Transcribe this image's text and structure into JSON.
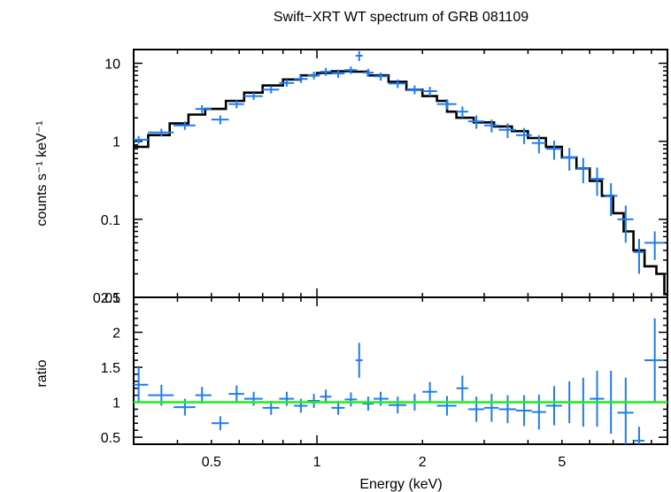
{
  "chart_data": [
    {
      "type": "scatter",
      "title": "Swift−XRT WT spectrum of GRB 081109",
      "ylabel": "counts s⁻¹ keV⁻¹",
      "xlabel": "",
      "x_scale": "log",
      "y_scale": "log",
      "xlim": [
        0.3,
        10
      ],
      "ylim": [
        0.01,
        15
      ],
      "x_ticks": [],
      "y_ticks": [
        {
          "value": 0.01,
          "label": "0.01"
        },
        {
          "value": 0.1,
          "label": "0.1"
        },
        {
          "value": 1,
          "label": "1"
        },
        {
          "value": 10,
          "label": "10"
        }
      ],
      "series": [
        {
          "kind": "data",
          "color": "#1e7cf0",
          "points": [
            {
              "x": 0.31,
              "xlo": 0.3,
              "xhi": 0.33,
              "y": 1.05,
              "yerr": 0.12
            },
            {
              "x": 0.36,
              "xlo": 0.33,
              "xhi": 0.39,
              "y": 1.3,
              "yerr": 0.15
            },
            {
              "x": 0.42,
              "xlo": 0.39,
              "xhi": 0.45,
              "y": 1.6,
              "yerr": 0.2
            },
            {
              "x": 0.47,
              "xlo": 0.45,
              "xhi": 0.5,
              "y": 2.6,
              "yerr": 0.3
            },
            {
              "x": 0.53,
              "xlo": 0.5,
              "xhi": 0.56,
              "y": 1.9,
              "yerr": 0.25
            },
            {
              "x": 0.59,
              "xlo": 0.56,
              "xhi": 0.62,
              "y": 3.0,
              "yerr": 0.35
            },
            {
              "x": 0.66,
              "xlo": 0.62,
              "xhi": 0.7,
              "y": 3.8,
              "yerr": 0.4
            },
            {
              "x": 0.74,
              "xlo": 0.7,
              "xhi": 0.78,
              "y": 4.6,
              "yerr": 0.5
            },
            {
              "x": 0.82,
              "xlo": 0.78,
              "xhi": 0.86,
              "y": 5.6,
              "yerr": 0.6
            },
            {
              "x": 0.9,
              "xlo": 0.86,
              "xhi": 0.94,
              "y": 6.3,
              "yerr": 0.7
            },
            {
              "x": 0.98,
              "xlo": 0.94,
              "xhi": 1.02,
              "y": 7.0,
              "yerr": 0.8
            },
            {
              "x": 1.06,
              "xlo": 1.02,
              "xhi": 1.1,
              "y": 7.8,
              "yerr": 0.9
            },
            {
              "x": 1.15,
              "xlo": 1.1,
              "xhi": 1.2,
              "y": 7.4,
              "yerr": 0.9
            },
            {
              "x": 1.25,
              "xlo": 1.2,
              "xhi": 1.3,
              "y": 8.2,
              "yerr": 0.9
            },
            {
              "x": 1.32,
              "xlo": 1.29,
              "xhi": 1.35,
              "y": 12.5,
              "yerr": 1.8
            },
            {
              "x": 1.4,
              "xlo": 1.35,
              "xhi": 1.45,
              "y": 7.6,
              "yerr": 0.9
            },
            {
              "x": 1.52,
              "xlo": 1.45,
              "xhi": 1.6,
              "y": 6.8,
              "yerr": 0.8
            },
            {
              "x": 1.7,
              "xlo": 1.6,
              "xhi": 1.8,
              "y": 5.5,
              "yerr": 0.7
            },
            {
              "x": 1.9,
              "xlo": 1.8,
              "xhi": 2.0,
              "y": 4.6,
              "yerr": 0.6
            },
            {
              "x": 2.1,
              "xlo": 2.0,
              "xhi": 2.2,
              "y": 4.4,
              "yerr": 0.6
            },
            {
              "x": 2.35,
              "xlo": 2.2,
              "xhi": 2.5,
              "y": 3.0,
              "yerr": 0.45
            },
            {
              "x": 2.6,
              "xlo": 2.5,
              "xhi": 2.7,
              "y": 2.4,
              "yerr": 0.4
            },
            {
              "x": 2.85,
              "xlo": 2.7,
              "xhi": 3.0,
              "y": 1.8,
              "yerr": 0.35
            },
            {
              "x": 3.15,
              "xlo": 3.0,
              "xhi": 3.3,
              "y": 1.6,
              "yerr": 0.3
            },
            {
              "x": 3.5,
              "xlo": 3.3,
              "xhi": 3.7,
              "y": 1.4,
              "yerr": 0.3
            },
            {
              "x": 3.9,
              "xlo": 3.7,
              "xhi": 4.1,
              "y": 1.2,
              "yerr": 0.28
            },
            {
              "x": 4.3,
              "xlo": 4.1,
              "xhi": 4.5,
              "y": 0.95,
              "yerr": 0.25
            },
            {
              "x": 4.75,
              "xlo": 4.5,
              "xhi": 5.0,
              "y": 0.8,
              "yerr": 0.22
            },
            {
              "x": 5.25,
              "xlo": 5.0,
              "xhi": 5.5,
              "y": 0.62,
              "yerr": 0.2
            },
            {
              "x": 5.75,
              "xlo": 5.5,
              "xhi": 6.0,
              "y": 0.45,
              "yerr": 0.16
            },
            {
              "x": 6.3,
              "xlo": 6.0,
              "xhi": 6.6,
              "y": 0.33,
              "yerr": 0.13
            },
            {
              "x": 6.9,
              "xlo": 6.6,
              "xhi": 7.2,
              "y": 0.2,
              "yerr": 0.09
            },
            {
              "x": 7.6,
              "xlo": 7.2,
              "xhi": 8.0,
              "y": 0.1,
              "yerr": 0.05
            },
            {
              "x": 8.3,
              "xlo": 8.0,
              "xhi": 8.6,
              "y": 0.038,
              "yerr": 0.018
            },
            {
              "x": 9.2,
              "xlo": 8.6,
              "xhi": 9.8,
              "y": 0.05,
              "yerr": 0.02
            }
          ]
        },
        {
          "kind": "model",
          "color": "#000000",
          "steps": [
            {
              "x0": 0.3,
              "x1": 0.33,
              "y": 0.85
            },
            {
              "x0": 0.33,
              "x1": 0.38,
              "y": 1.2
            },
            {
              "x0": 0.38,
              "x1": 0.43,
              "y": 1.7
            },
            {
              "x0": 0.43,
              "x1": 0.48,
              "y": 2.2
            },
            {
              "x0": 0.48,
              "x1": 0.55,
              "y": 2.6
            },
            {
              "x0": 0.55,
              "x1": 0.62,
              "y": 3.3
            },
            {
              "x0": 0.62,
              "x1": 0.7,
              "y": 4.2
            },
            {
              "x0": 0.7,
              "x1": 0.8,
              "y": 5.2
            },
            {
              "x0": 0.8,
              "x1": 0.9,
              "y": 6.2
            },
            {
              "x0": 0.9,
              "x1": 1.0,
              "y": 7.0
            },
            {
              "x0": 1.0,
              "x1": 1.1,
              "y": 7.5
            },
            {
              "x0": 1.1,
              "x1": 1.25,
              "y": 7.9
            },
            {
              "x0": 1.25,
              "x1": 1.4,
              "y": 7.8
            },
            {
              "x0": 1.4,
              "x1": 1.6,
              "y": 7.0
            },
            {
              "x0": 1.6,
              "x1": 1.8,
              "y": 5.8
            },
            {
              "x0": 1.8,
              "x1": 2.0,
              "y": 4.6
            },
            {
              "x0": 2.0,
              "x1": 2.2,
              "y": 3.8
            },
            {
              "x0": 2.2,
              "x1": 2.35,
              "y": 3.3
            },
            {
              "x0": 2.35,
              "x1": 2.5,
              "y": 2.4
            },
            {
              "x0": 2.5,
              "x1": 2.8,
              "y": 2.0
            },
            {
              "x0": 2.8,
              "x1": 3.2,
              "y": 1.75
            },
            {
              "x0": 3.2,
              "x1": 3.6,
              "y": 1.55
            },
            {
              "x0": 3.6,
              "x1": 4.0,
              "y": 1.35
            },
            {
              "x0": 4.0,
              "x1": 4.5,
              "y": 1.1
            },
            {
              "x0": 4.5,
              "x1": 5.0,
              "y": 0.85
            },
            {
              "x0": 5.0,
              "x1": 5.5,
              "y": 0.62
            },
            {
              "x0": 5.5,
              "x1": 6.0,
              "y": 0.45
            },
            {
              "x0": 6.0,
              "x1": 6.5,
              "y": 0.31
            },
            {
              "x0": 6.5,
              "x1": 7.0,
              "y": 0.2
            },
            {
              "x0": 7.0,
              "x1": 7.5,
              "y": 0.12
            },
            {
              "x0": 7.5,
              "x1": 8.0,
              "y": 0.07
            },
            {
              "x0": 8.0,
              "x1": 8.6,
              "y": 0.04
            },
            {
              "x0": 8.6,
              "x1": 9.3,
              "y": 0.025
            },
            {
              "x0": 9.3,
              "x1": 9.8,
              "y": 0.02
            },
            {
              "x0": 9.8,
              "x1": 10.0,
              "y": 0.011
            }
          ]
        }
      ]
    },
    {
      "type": "scatter",
      "title": "",
      "xlabel": "Energy (keV)",
      "ylabel": "ratio",
      "x_scale": "log",
      "y_scale": "linear",
      "xlim": [
        0.3,
        10
      ],
      "ylim": [
        0.4,
        2.5
      ],
      "x_ticks": [
        {
          "value": 0.5,
          "label": "0.5"
        },
        {
          "value": 1,
          "label": "1"
        },
        {
          "value": 2,
          "label": "2"
        },
        {
          "value": 5,
          "label": "5"
        }
      ],
      "y_ticks": [
        {
          "value": 0.5,
          "label": "0.5"
        },
        {
          "value": 1,
          "label": "1"
        },
        {
          "value": 1.5,
          "label": "1.5"
        },
        {
          "value": 2,
          "label": "2"
        },
        {
          "value": 2.5,
          "label": "2.5"
        }
      ],
      "reference_line": {
        "y": 1,
        "color": "#22ee22"
      },
      "series": [
        {
          "kind": "data",
          "color": "#1e7cf0",
          "points": [
            {
              "x": 0.31,
              "xlo": 0.3,
              "xhi": 0.33,
              "y": 1.25,
              "yerr": 0.25
            },
            {
              "x": 0.36,
              "xlo": 0.33,
              "xhi": 0.39,
              "y": 1.1,
              "yerr": 0.15
            },
            {
              "x": 0.42,
              "xlo": 0.39,
              "xhi": 0.45,
              "y": 0.93,
              "yerr": 0.12
            },
            {
              "x": 0.47,
              "xlo": 0.45,
              "xhi": 0.5,
              "y": 1.1,
              "yerr": 0.12
            },
            {
              "x": 0.53,
              "xlo": 0.5,
              "xhi": 0.56,
              "y": 0.7,
              "yerr": 0.1
            },
            {
              "x": 0.59,
              "xlo": 0.56,
              "xhi": 0.62,
              "y": 1.12,
              "yerr": 0.12
            },
            {
              "x": 0.66,
              "xlo": 0.62,
              "xhi": 0.7,
              "y": 1.05,
              "yerr": 0.1
            },
            {
              "x": 0.74,
              "xlo": 0.7,
              "xhi": 0.78,
              "y": 0.92,
              "yerr": 0.1
            },
            {
              "x": 0.82,
              "xlo": 0.78,
              "xhi": 0.86,
              "y": 1.05,
              "yerr": 0.1
            },
            {
              "x": 0.9,
              "xlo": 0.86,
              "xhi": 0.94,
              "y": 0.95,
              "yerr": 0.1
            },
            {
              "x": 0.98,
              "xlo": 0.94,
              "xhi": 1.02,
              "y": 1.02,
              "yerr": 0.1
            },
            {
              "x": 1.06,
              "xlo": 1.02,
              "xhi": 1.1,
              "y": 1.08,
              "yerr": 0.1
            },
            {
              "x": 1.15,
              "xlo": 1.1,
              "xhi": 1.2,
              "y": 0.92,
              "yerr": 0.1
            },
            {
              "x": 1.25,
              "xlo": 1.2,
              "xhi": 1.3,
              "y": 1.04,
              "yerr": 0.1
            },
            {
              "x": 1.32,
              "xlo": 1.29,
              "xhi": 1.35,
              "y": 1.6,
              "yerr": 0.25
            },
            {
              "x": 1.4,
              "xlo": 1.35,
              "xhi": 1.45,
              "y": 0.98,
              "yerr": 0.1
            },
            {
              "x": 1.52,
              "xlo": 1.45,
              "xhi": 1.6,
              "y": 1.05,
              "yerr": 0.1
            },
            {
              "x": 1.7,
              "xlo": 1.6,
              "xhi": 1.8,
              "y": 0.96,
              "yerr": 0.12
            },
            {
              "x": 1.9,
              "xlo": 1.8,
              "xhi": 2.0,
              "y": 1.0,
              "yerr": 0.12
            },
            {
              "x": 2.1,
              "xlo": 2.0,
              "xhi": 2.2,
              "y": 1.15,
              "yerr": 0.14
            },
            {
              "x": 2.35,
              "xlo": 2.2,
              "xhi": 2.5,
              "y": 0.95,
              "yerr": 0.14
            },
            {
              "x": 2.6,
              "xlo": 2.5,
              "xhi": 2.7,
              "y": 1.2,
              "yerr": 0.18
            },
            {
              "x": 2.85,
              "xlo": 2.7,
              "xhi": 3.0,
              "y": 0.9,
              "yerr": 0.18
            },
            {
              "x": 3.15,
              "xlo": 3.0,
              "xhi": 3.3,
              "y": 0.92,
              "yerr": 0.2
            },
            {
              "x": 3.5,
              "xlo": 3.3,
              "xhi": 3.7,
              "y": 0.9,
              "yerr": 0.2
            },
            {
              "x": 3.9,
              "xlo": 3.7,
              "xhi": 4.1,
              "y": 0.88,
              "yerr": 0.22
            },
            {
              "x": 4.3,
              "xlo": 4.1,
              "xhi": 4.5,
              "y": 0.86,
              "yerr": 0.25
            },
            {
              "x": 4.75,
              "xlo": 4.5,
              "xhi": 5.0,
              "y": 0.95,
              "yerr": 0.28
            },
            {
              "x": 5.25,
              "xlo": 5.0,
              "xhi": 5.5,
              "y": 1.0,
              "yerr": 0.3
            },
            {
              "x": 5.75,
              "xlo": 5.5,
              "xhi": 6.0,
              "y": 1.0,
              "yerr": 0.35
            },
            {
              "x": 6.3,
              "xlo": 6.0,
              "xhi": 6.6,
              "y": 1.05,
              "yerr": 0.4
            },
            {
              "x": 6.9,
              "xlo": 6.6,
              "xhi": 7.2,
              "y": 1.0,
              "yerr": 0.45
            },
            {
              "x": 7.6,
              "xlo": 7.2,
              "xhi": 8.0,
              "y": 0.85,
              "yerr": 0.5
            },
            {
              "x": 8.3,
              "xlo": 8.0,
              "xhi": 8.6,
              "y": 0.45,
              "yerr": 0.2
            },
            {
              "x": 9.2,
              "xlo": 8.6,
              "xhi": 9.8,
              "y": 1.6,
              "yerr": 0.6
            }
          ]
        }
      ]
    }
  ]
}
